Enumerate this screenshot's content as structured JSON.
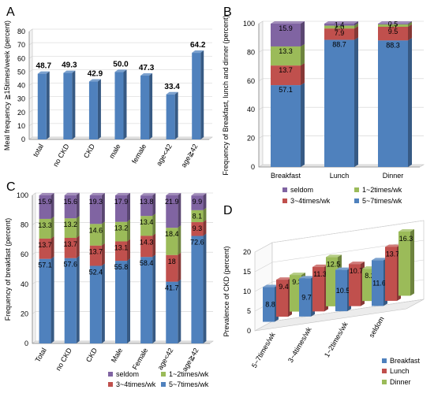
{
  "chart_data": [
    {
      "panel": "A",
      "type": "bar",
      "ylabel": "Meal frequency ≧15times/week (percent)",
      "ylim": [
        0,
        80
      ],
      "yticks": [
        "0",
        "10",
        "20",
        "30",
        "40",
        "50",
        "60",
        "70",
        "80"
      ],
      "categories": [
        "total",
        "no CKD",
        "CKD",
        "male",
        "female",
        "age<42",
        "age≧42"
      ],
      "values": [
        48.7,
        49.3,
        42.9,
        50.0,
        47.3,
        33.4,
        64.2
      ],
      "value_labels": [
        "48.7",
        "49.3",
        "42.9",
        "50.0",
        "47.3",
        "33.4",
        "64.2"
      ],
      "color": "#4f81bd"
    },
    {
      "panel": "B",
      "type": "bar",
      "stacked": true,
      "ylabel": "Frequency of Breakfast, lunch and dinner (percent)",
      "ylim": [
        0,
        100
      ],
      "yticks": [
        "0",
        "20",
        "40",
        "60",
        "80",
        "100"
      ],
      "categories": [
        "Breakfast",
        "Lunch",
        "Dinner"
      ],
      "series": [
        {
          "name": "5~7times/wk",
          "color": "#4f81bd",
          "values": [
            57.1,
            88.7,
            88.3
          ],
          "labels": [
            "57.1",
            "88.7",
            "88.3"
          ]
        },
        {
          "name": "3~4times/wk",
          "color": "#c0504d",
          "values": [
            13.7,
            7.9,
            9.5
          ],
          "labels": [
            "13.7",
            "7.9",
            "9.5"
          ]
        },
        {
          "name": "1~2times/wk",
          "color": "#9bbb59",
          "values": [
            13.3,
            2.0,
            1.7
          ],
          "labels": [
            "13.3",
            "2.0",
            "1.7"
          ]
        },
        {
          "name": "seldom",
          "color": "#8064a2",
          "values": [
            15.9,
            1.4,
            0.5
          ],
          "labels": [
            "15.9",
            "1.4",
            "0.5"
          ]
        }
      ],
      "legend": [
        "seldom",
        "1~2times/wk",
        "3~4times/wk",
        "5~7times/wk"
      ]
    },
    {
      "panel": "C",
      "type": "bar",
      "stacked": true,
      "ylabel": "Frequency of breakfast (percent)",
      "ylim": [
        0,
        100
      ],
      "yticks": [
        "0",
        "20",
        "40",
        "60",
        "80",
        "100"
      ],
      "categories": [
        "Total",
        "no CKD",
        "CKD",
        "Male",
        "Female",
        "age<42",
        "age≧42"
      ],
      "series": [
        {
          "name": "5~7times/wk",
          "color": "#4f81bd",
          "values": [
            57.1,
            57.6,
            52.4,
            55.8,
            58.4,
            41.7,
            72.6
          ],
          "labels": [
            "57.1",
            "57.6",
            "52.4",
            "55.8",
            "58.4",
            "41.7",
            "72.6"
          ]
        },
        {
          "name": "3~4times/wk",
          "color": "#c0504d",
          "values": [
            13.7,
            13.7,
            13.7,
            13.1,
            14.3,
            18,
            9.3
          ],
          "labels": [
            "13.7",
            "13.7",
            "13.7",
            "13.1",
            "14.3",
            "18",
            "9.3"
          ]
        },
        {
          "name": "1~2times/wk",
          "color": "#9bbb59",
          "values": [
            13.3,
            13.2,
            14.6,
            13.2,
            13.4,
            18.4,
            8.1
          ],
          "labels": [
            "13.3",
            "13.2",
            "14.6",
            "13.2",
            "13.4",
            "18.4",
            "8.1"
          ]
        },
        {
          "name": "seldom",
          "color": "#8064a2",
          "values": [
            15.9,
            15.6,
            19.3,
            17.9,
            13.8,
            21.9,
            9.9
          ],
          "labels": [
            "15.9",
            "15.6",
            "19.3",
            "17.9",
            "13.8",
            "21.9",
            "9.9"
          ]
        }
      ],
      "legend": [
        "seldom",
        "1~2times/wk",
        "3~4times/wk",
        "5~7times/wk"
      ]
    },
    {
      "panel": "D",
      "type": "bar",
      "ylabel": "Prevalence of CKD (percent)",
      "ylim": [
        0,
        20
      ],
      "yticks": [
        "0",
        "5",
        "10",
        "15",
        "20"
      ],
      "categories": [
        "5~7times/wk",
        "3~4times/wk",
        "1~2times/wk",
        "seldom"
      ],
      "series": [
        {
          "name": "Breakfast",
          "color": "#4f81bd",
          "values": [
            8.8,
            9.7,
            10.5,
            11.6
          ],
          "labels": [
            "8.8",
            "9.7",
            "10.5",
            "11.6"
          ]
        },
        {
          "name": "Lunch",
          "color": "#c0504d",
          "values": [
            9.4,
            11.3,
            10.7,
            13.7
          ],
          "labels": [
            "9.4",
            "11.3",
            "10.7",
            "13.7"
          ]
        },
        {
          "name": "Dinner",
          "color": "#9bbb59",
          "values": [
            9.3,
            12.5,
            8.2,
            16.3
          ],
          "labels": [
            "9.3",
            "12.5",
            "8.2",
            "16.3"
          ]
        }
      ],
      "legend": [
        "Breakfast",
        "Lunch",
        "Dinner"
      ]
    }
  ]
}
